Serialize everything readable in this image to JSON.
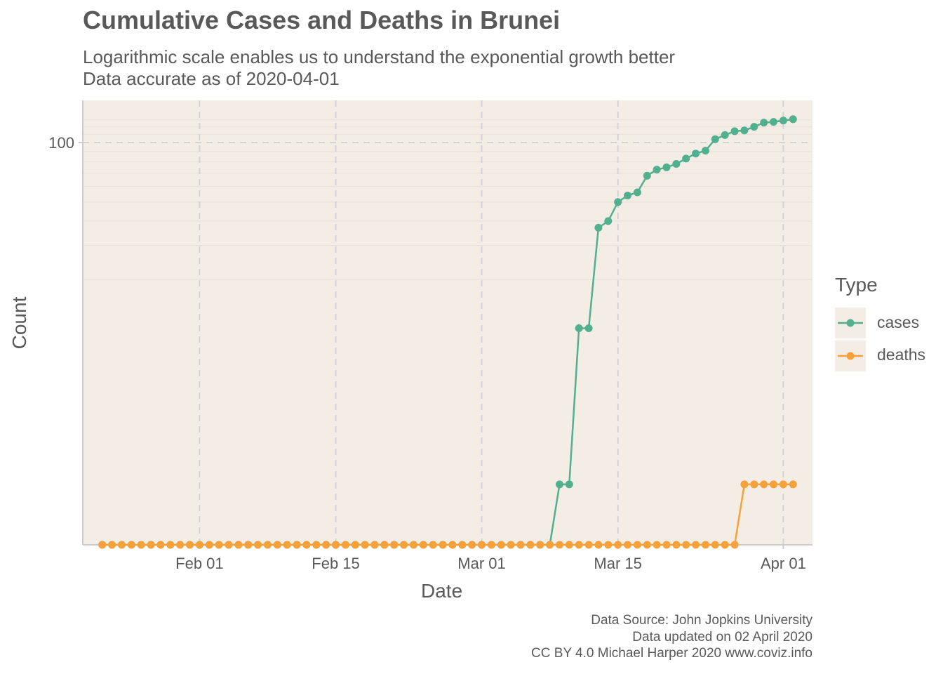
{
  "chart_data": {
    "type": "line",
    "title": "Cumulative Cases and Deaths in Brunei",
    "subtitle_lines": [
      "Logarithmic scale enables us to understand the exponential growth better",
      "Data accurate as of 2020-04-01"
    ],
    "xlabel": "Date",
    "ylabel": "Count",
    "y_scale": "log",
    "y_ticks": [
      100
    ],
    "y_tick_labels": [
      "100"
    ],
    "x_ticks": [
      "2020-02-01",
      "2020-02-15",
      "2020-03-01",
      "2020-03-15",
      "2020-04-01"
    ],
    "x_tick_labels": [
      "Feb 01",
      "Feb 15",
      "Mar 01",
      "Mar 15",
      "Apr 01"
    ],
    "x_range": [
      "2020-01-20",
      "2020-04-04"
    ],
    "grid": true,
    "legend_title": "Type",
    "legend_position": "right",
    "series": [
      {
        "name": "cases",
        "color": "#52b08f",
        "x_start": "2020-01-22",
        "values": [
          0,
          0,
          0,
          0,
          0,
          0,
          0,
          0,
          0,
          0,
          0,
          0,
          0,
          0,
          0,
          0,
          0,
          0,
          0,
          0,
          0,
          0,
          0,
          0,
          0,
          0,
          0,
          0,
          0,
          0,
          0,
          0,
          0,
          0,
          0,
          0,
          0,
          0,
          0,
          0,
          0,
          0,
          0,
          0,
          0,
          0,
          0,
          1,
          1,
          11,
          11,
          37,
          40,
          50,
          54,
          56,
          68,
          73,
          75,
          78,
          83,
          88,
          91,
          104,
          109,
          114,
          115,
          120,
          126,
          127,
          129,
          131
        ]
      },
      {
        "name": "deaths",
        "color": "#f7a13a",
        "x_start": "2020-01-22",
        "values": [
          0,
          0,
          0,
          0,
          0,
          0,
          0,
          0,
          0,
          0,
          0,
          0,
          0,
          0,
          0,
          0,
          0,
          0,
          0,
          0,
          0,
          0,
          0,
          0,
          0,
          0,
          0,
          0,
          0,
          0,
          0,
          0,
          0,
          0,
          0,
          0,
          0,
          0,
          0,
          0,
          0,
          0,
          0,
          0,
          0,
          0,
          0,
          0,
          0,
          0,
          0,
          0,
          0,
          0,
          0,
          0,
          0,
          0,
          0,
          0,
          0,
          0,
          0,
          0,
          0,
          0,
          1,
          1,
          1,
          1,
          1,
          1
        ]
      }
    ]
  },
  "caption": [
    "Data Source: John Jopkins University",
    "Data updated on 02 April 2020",
    "CC BY 4.0 Michael Harper 2020 www.coviz.info"
  ]
}
